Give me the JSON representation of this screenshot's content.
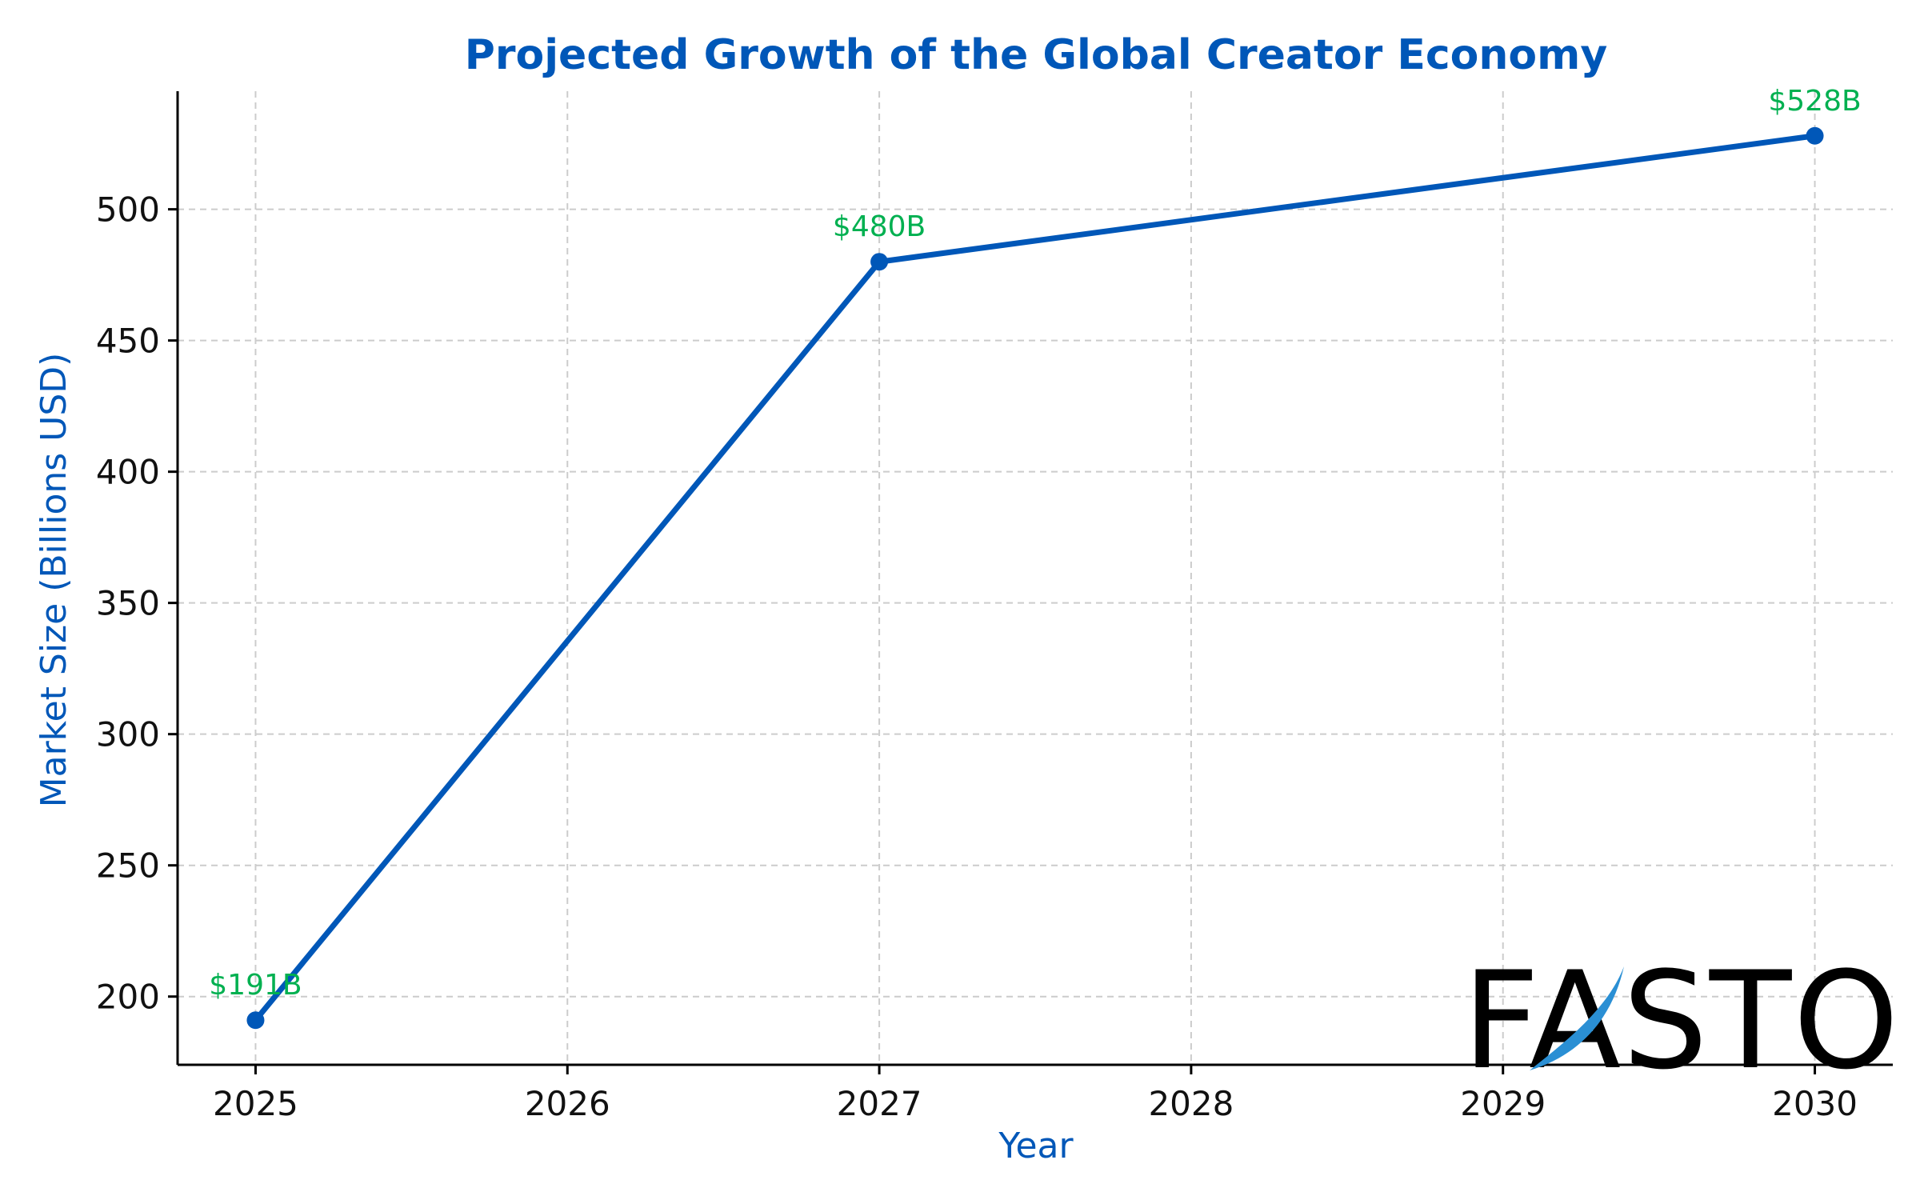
{
  "colors": {
    "title": "#0057b8",
    "axis_label": "#0057b8",
    "line": "#0057b8",
    "marker": "#0057b8",
    "data_label": "#00b050",
    "grid": "#cccccc",
    "logo_text": "#000000",
    "logo_swoosh": "#2a8fd4"
  },
  "chart_data": {
    "type": "line",
    "title": "Projected Growth of the Global Creator Economy",
    "xlabel": "Year",
    "ylabel": "Market Size (Billions USD)",
    "x": [
      2025,
      2027,
      2030
    ],
    "values": [
      191,
      480,
      528
    ],
    "data_labels": [
      "$191B",
      "$480B",
      "$528B"
    ],
    "xticks": [
      "2025",
      "2026",
      "2027",
      "2028",
      "2029",
      "2030"
    ],
    "yticks": [
      "200",
      "250",
      "300",
      "350",
      "400",
      "450",
      "500"
    ],
    "xlim": [
      2024.75,
      2030.25
    ],
    "ylim": [
      174,
      545
    ],
    "grid": true,
    "markers": true
  },
  "logo": {
    "text": "FASTO",
    "icon": "fasto-logo"
  }
}
